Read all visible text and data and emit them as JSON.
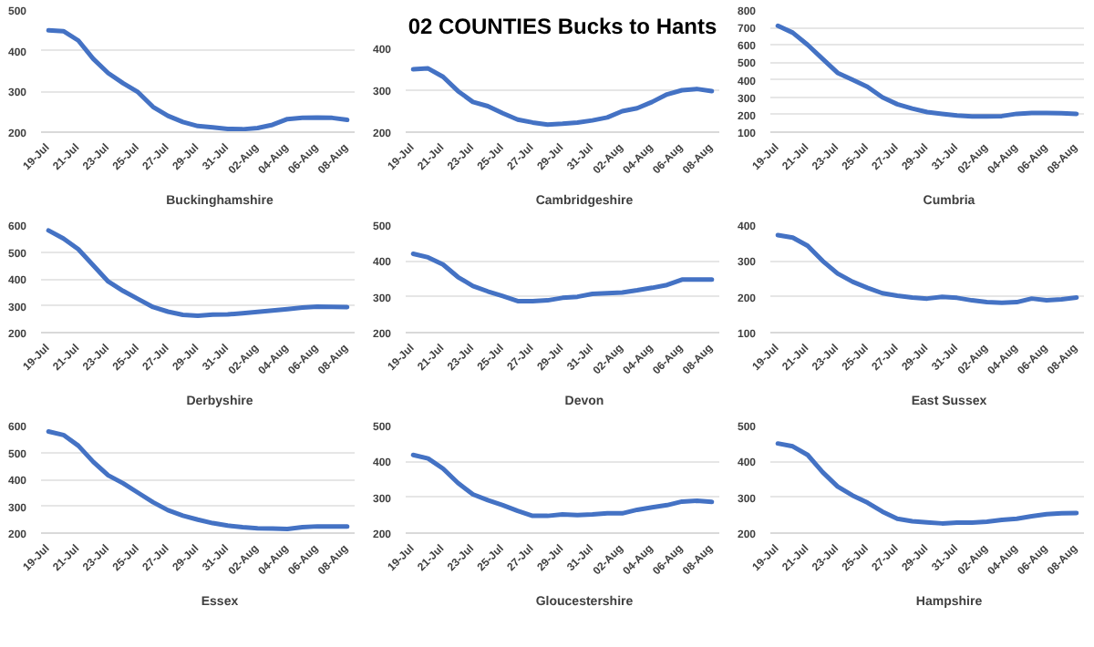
{
  "chart_data": [
    {
      "type": "line",
      "categories": [
        "19-Jul",
        null,
        "21-Jul",
        null,
        "23-Jul",
        null,
        "25-Jul",
        null,
        "27-Jul",
        null,
        "29-Jul",
        null,
        "31-Jul",
        null,
        "02-Aug",
        null,
        "04-Aug",
        null,
        "06-Aug",
        null,
        "08-Aug"
      ],
      "ylim": [
        200,
        500
      ],
      "yticks": [
        200,
        300,
        400,
        500
      ],
      "grid": "y",
      "legend": "bottom",
      "series": [
        {
          "name": "Buckinghamshire",
          "color": "#4472c4",
          "values": [
            450,
            448,
            425,
            380,
            345,
            320,
            298,
            262,
            240,
            225,
            215,
            212,
            208,
            207,
            210,
            218,
            232,
            235,
            236,
            235,
            230
          ]
        }
      ]
    },
    {
      "type": "line",
      "title": "02 COUNTIES Bucks to Hants",
      "categories": [
        "19-Jul",
        null,
        "21-Jul",
        null,
        "23-Jul",
        null,
        "25-Jul",
        null,
        "27-Jul",
        null,
        "29-Jul",
        null,
        "31-Jul",
        null,
        "02-Aug",
        null,
        "04-Aug",
        null,
        "06-Aug",
        null,
        "08-Aug"
      ],
      "ylim": [
        200,
        400
      ],
      "yticks": [
        200,
        300,
        400
      ],
      "grid": "y",
      "legend": "bottom",
      "series": [
        {
          "name": "Cambridgeshire",
          "color": "#4472c4",
          "values": [
            350,
            352,
            332,
            298,
            272,
            262,
            245,
            230,
            223,
            218,
            220,
            223,
            228,
            235,
            250,
            257,
            272,
            290,
            300,
            303,
            298
          ]
        }
      ]
    },
    {
      "type": "line",
      "categories": [
        "19-Jul",
        null,
        "21-Jul",
        null,
        "23-Jul",
        null,
        "25-Jul",
        null,
        "27-Jul",
        null,
        "29-Jul",
        null,
        "31-Jul",
        null,
        "02-Aug",
        null,
        "04-Aug",
        null,
        "06-Aug",
        null,
        "08-Aug"
      ],
      "ylim": [
        100,
        800
      ],
      "yticks": [
        100,
        200,
        300,
        400,
        500,
        600,
        700,
        800
      ],
      "grid": "y",
      "legend": "bottom",
      "series": [
        {
          "name": "Cumbria",
          "color": "#4472c4",
          "values": [
            710,
            670,
            600,
            520,
            440,
            400,
            360,
            300,
            260,
            235,
            215,
            205,
            195,
            190,
            190,
            192,
            205,
            210,
            210,
            208,
            205
          ]
        }
      ]
    },
    {
      "type": "line",
      "categories": [
        "19-Jul",
        null,
        "21-Jul",
        null,
        "23-Jul",
        null,
        "25-Jul",
        null,
        "27-Jul",
        null,
        "29-Jul",
        null,
        "31-Jul",
        null,
        "02-Aug",
        null,
        "04-Aug",
        null,
        "06-Aug",
        null,
        "08-Aug"
      ],
      "ylim": [
        200,
        600
      ],
      "yticks": [
        200,
        300,
        400,
        500,
        600
      ],
      "grid": "y",
      "legend": "bottom",
      "series": [
        {
          "name": "Derbyshire",
          "color": "#4472c4",
          "values": [
            580,
            550,
            510,
            450,
            390,
            355,
            325,
            295,
            278,
            266,
            263,
            267,
            268,
            272,
            277,
            282,
            287,
            293,
            297,
            296,
            295
          ]
        }
      ]
    },
    {
      "type": "line",
      "categories": [
        "19-Jul",
        null,
        "21-Jul",
        null,
        "23-Jul",
        null,
        "25-Jul",
        null,
        "27-Jul",
        null,
        "29-Jul",
        null,
        "31-Jul",
        null,
        "02-Aug",
        null,
        "04-Aug",
        null,
        "06-Aug",
        null,
        "08-Aug"
      ],
      "ylim": [
        200,
        500
      ],
      "yticks": [
        200,
        300,
        400,
        500
      ],
      "grid": "y",
      "legend": "bottom",
      "series": [
        {
          "name": "Devon",
          "color": "#4472c4",
          "values": [
            420,
            410,
            390,
            355,
            330,
            315,
            302,
            288,
            288,
            290,
            297,
            300,
            308,
            310,
            312,
            318,
            325,
            333,
            348,
            348,
            348
          ]
        }
      ]
    },
    {
      "type": "line",
      "categories": [
        "19-Jul",
        null,
        "21-Jul",
        null,
        "23-Jul",
        null,
        "25-Jul",
        null,
        "27-Jul",
        null,
        "29-Jul",
        null,
        "31-Jul",
        null,
        "02-Aug",
        null,
        "04-Aug",
        null,
        "06-Aug",
        null,
        "08-Aug"
      ],
      "ylim": [
        100,
        400
      ],
      "yticks": [
        100,
        200,
        300,
        400
      ],
      "grid": "y",
      "legend": "bottom",
      "series": [
        {
          "name": "East Sussex",
          "color": "#4472c4",
          "values": [
            372,
            365,
            342,
            300,
            265,
            242,
            225,
            210,
            203,
            198,
            195,
            200,
            197,
            190,
            185,
            183,
            185,
            195,
            190,
            193,
            198
          ]
        }
      ]
    },
    {
      "type": "line",
      "categories": [
        "19-Jul",
        null,
        "21-Jul",
        null,
        "23-Jul",
        null,
        "25-Jul",
        null,
        "27-Jul",
        null,
        "29-Jul",
        null,
        "31-Jul",
        null,
        "02-Aug",
        null,
        "04-Aug",
        null,
        "06-Aug",
        null,
        "08-Aug"
      ],
      "ylim": [
        200,
        600
      ],
      "yticks": [
        200,
        300,
        400,
        500,
        600
      ],
      "grid": "y",
      "legend": "bottom",
      "series": [
        {
          "name": "Essex",
          "color": "#4472c4",
          "values": [
            578,
            565,
            525,
            465,
            415,
            385,
            350,
            315,
            285,
            265,
            250,
            237,
            228,
            222,
            218,
            217,
            215,
            222,
            225,
            225,
            225
          ]
        }
      ]
    },
    {
      "type": "line",
      "categories": [
        "19-Jul",
        null,
        "21-Jul",
        null,
        "23-Jul",
        null,
        "25-Jul",
        null,
        "27-Jul",
        null,
        "29-Jul",
        null,
        "31-Jul",
        null,
        "02-Aug",
        null,
        "04-Aug",
        null,
        "06-Aug",
        null,
        "08-Aug"
      ],
      "ylim": [
        200,
        500
      ],
      "yticks": [
        200,
        300,
        400,
        500
      ],
      "grid": "y",
      "legend": "bottom",
      "series": [
        {
          "name": "Gloucestershire",
          "color": "#4472c4",
          "values": [
            418,
            408,
            380,
            340,
            308,
            292,
            278,
            262,
            248,
            248,
            252,
            250,
            252,
            255,
            255,
            265,
            272,
            278,
            288,
            290,
            287
          ]
        }
      ]
    },
    {
      "type": "line",
      "categories": [
        "19-Jul",
        null,
        "21-Jul",
        null,
        "23-Jul",
        null,
        "25-Jul",
        null,
        "27-Jul",
        null,
        "29-Jul",
        null,
        "31-Jul",
        null,
        "02-Aug",
        null,
        "04-Aug",
        null,
        "06-Aug",
        null,
        "08-Aug"
      ],
      "ylim": [
        200,
        500
      ],
      "yticks": [
        200,
        300,
        400,
        500
      ],
      "grid": "y",
      "legend": "bottom",
      "series": [
        {
          "name": "Hampshire",
          "color": "#4472c4",
          "values": [
            450,
            442,
            418,
            370,
            330,
            305,
            285,
            260,
            240,
            233,
            230,
            227,
            229,
            229,
            232,
            237,
            240,
            247,
            253,
            255,
            256
          ]
        }
      ]
    }
  ]
}
